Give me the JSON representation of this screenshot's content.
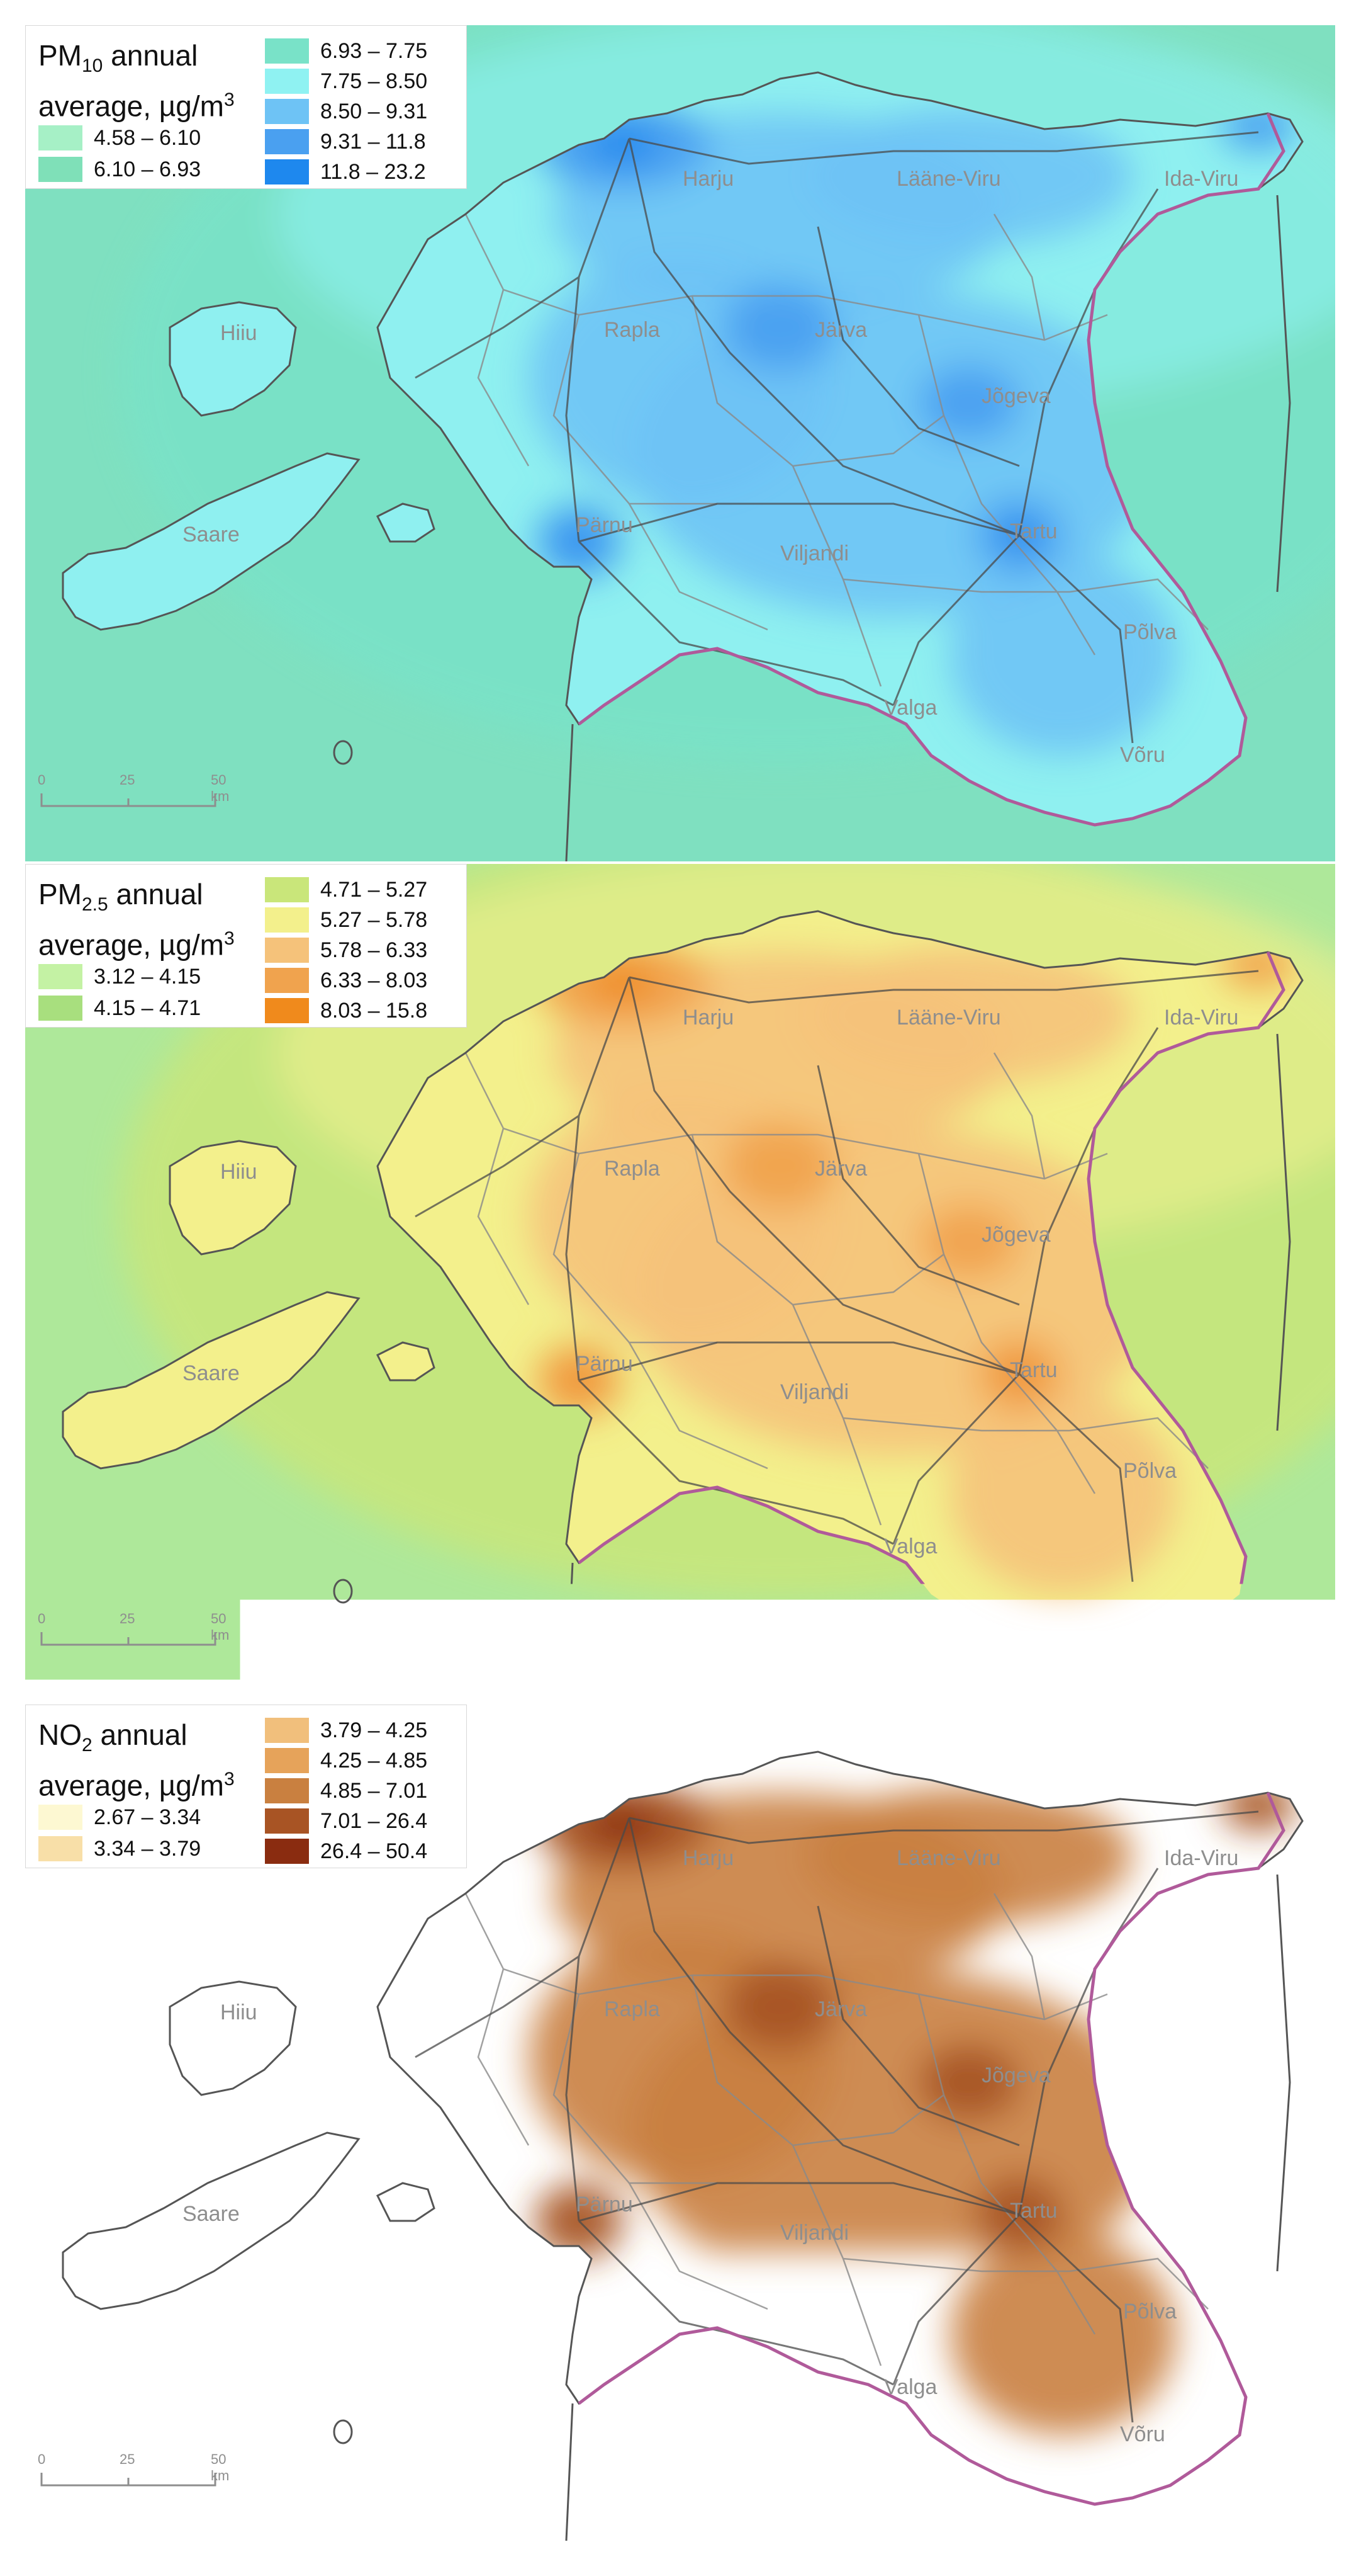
{
  "panels": [
    {
      "pollutant_main": "PM",
      "pollutant_sub": "10",
      "title_rest": "annual",
      "title_line2": "average, µg/m",
      "title_sup": "3",
      "background_color": "#7fe0c0",
      "land_base_color": "#8ff0f0",
      "legend": [
        {
          "label": "4.58 – 6.10",
          "color": "#a6f0c6"
        },
        {
          "label": "6.10 – 6.93",
          "color": "#7fe0b8"
        },
        {
          "label": "6.93 – 7.75",
          "color": "#79e2c8"
        },
        {
          "label": "7.75 – 8.50",
          "color": "#8ff2f2"
        },
        {
          "label": "8.50 – 9.31",
          "color": "#6ec3f5"
        },
        {
          "label": "9.31 – 11.8",
          "color": "#4aa0f0"
        },
        {
          "label": "11.8 – 23.2",
          "color": "#1e88ee"
        }
      ]
    },
    {
      "pollutant_main": "PM",
      "pollutant_sub": "2.5",
      "title_rest": "annual",
      "title_line2": "average, µg/m",
      "title_sup": "3",
      "background_color": "#aee89a",
      "land_base_color": "#f3f08c",
      "legend": [
        {
          "label": "3.12 – 4.15",
          "color": "#c4f2a4"
        },
        {
          "label": "4.15 – 4.71",
          "color": "#a8df7e"
        },
        {
          "label": "4.71 – 5.27",
          "color": "#c9e67a"
        },
        {
          "label": "5.27 – 5.78",
          "color": "#f3f08c"
        },
        {
          "label": "5.78 – 6.33",
          "color": "#f5c27a"
        },
        {
          "label": "6.33 – 8.03",
          "color": "#f0a34e"
        },
        {
          "label": "8.03 – 15.8",
          "color": "#f08a1c"
        }
      ]
    },
    {
      "pollutant_main": "NO",
      "pollutant_sub": "2",
      "title_rest": "annual",
      "title_line2": "average, µg/m",
      "title_sup": "3",
      "background_color": "#fdf8d2",
      "land_base_color": "#f1bf7c",
      "legend": [
        {
          "label": "2.67 – 3.34",
          "color": "#fdf8d2"
        },
        {
          "label": "3.34 – 3.79",
          "color": "#f8dfa8"
        },
        {
          "label": "3.79 – 4.25",
          "color": "#f1bf7c"
        },
        {
          "label": "4.25 – 4.85",
          "color": "#e6a35a"
        },
        {
          "label": "4.85 – 7.01",
          "color": "#c98040"
        },
        {
          "label": "7.01 – 26.4",
          "color": "#a85424"
        },
        {
          "label": "26.4 – 50.4",
          "color": "#8a2c10"
        }
      ]
    }
  ],
  "counties": [
    "Harju",
    "Lääne-Viru",
    "Ida-Viru",
    "Hiiu",
    "Rapla",
    "Järva",
    "Jõgeva",
    "Saare",
    "Pärnu",
    "Viljandi",
    "Tartu",
    "Põlva",
    "Valga",
    "Võru"
  ],
  "scale": {
    "ticks": [
      "0",
      "25",
      "50 km"
    ]
  },
  "colors": {
    "border_line": "#555555",
    "road_line": "#4a4a4a",
    "state_border": "#b05a9a",
    "county_label": "#8e8e8e"
  }
}
